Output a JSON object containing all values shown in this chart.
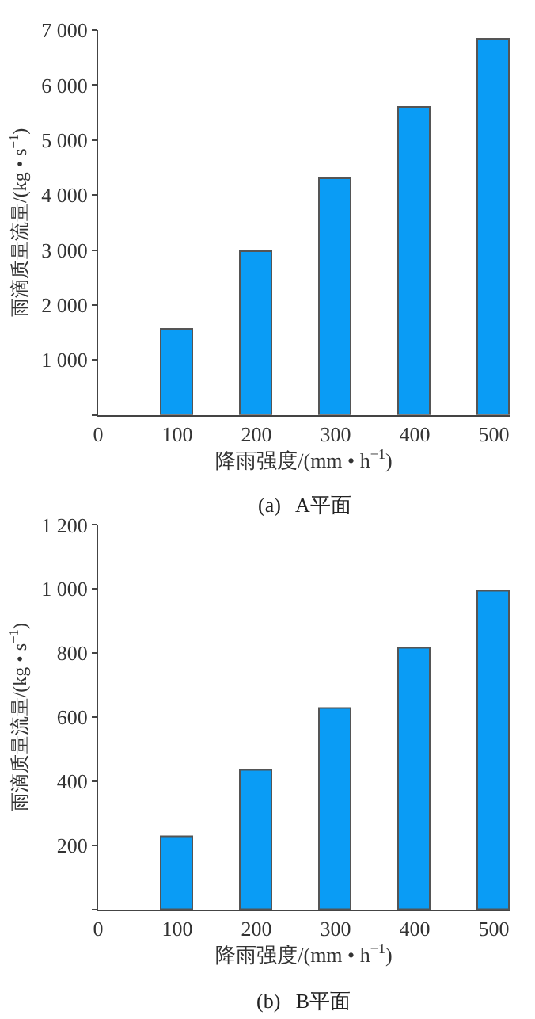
{
  "chart_data": [
    {
      "type": "bar",
      "title": "(a)   A平面",
      "xlabel": "降雨强度/(mm • h$^{−1}$)",
      "ylabel": "雨滴质量流量/(kg • s$^{−1}$)",
      "x": [
        100,
        200,
        300,
        400,
        500
      ],
      "values": [
        1550,
        2960,
        4300,
        5590,
        6830
      ],
      "color": "#0a9cf5",
      "xlim": [
        0,
        520
      ],
      "xticks": [
        0,
        100,
        200,
        300,
        400,
        500
      ],
      "ylim": [
        0,
        7000
      ],
      "yticks": [
        {
          "value": 0,
          "label": null
        },
        {
          "value": 1000,
          "label": "1 000"
        },
        {
          "value": 2000,
          "label": "2 000"
        },
        {
          "value": 3000,
          "label": "3 000"
        },
        {
          "value": 4000,
          "label": "4 000"
        },
        {
          "value": 5000,
          "label": "5 000"
        },
        {
          "value": 6000,
          "label": "6 000"
        },
        {
          "value": 7000,
          "label": "7 000"
        }
      ]
    },
    {
      "type": "bar",
      "title": "(b)   B平面",
      "xlabel": "降雨强度/(mm • h$^{−1}$)",
      "ylabel": "雨滴质量流量/(kg • s$^{−1}$)",
      "x": [
        100,
        200,
        300,
        400,
        500
      ],
      "values": [
        227,
        433,
        626,
        813,
        994
      ],
      "color": "#0a9cf5",
      "xlim": [
        0,
        520
      ],
      "xticks": [
        0,
        100,
        200,
        300,
        400,
        500
      ],
      "ylim": [
        0,
        1200
      ],
      "yticks": [
        {
          "value": 0,
          "label": null
        },
        200,
        400,
        600,
        800,
        {
          "value": 1000,
          "label": "1 000"
        },
        {
          "value": 1200,
          "label": "1 200"
        }
      ]
    }
  ]
}
